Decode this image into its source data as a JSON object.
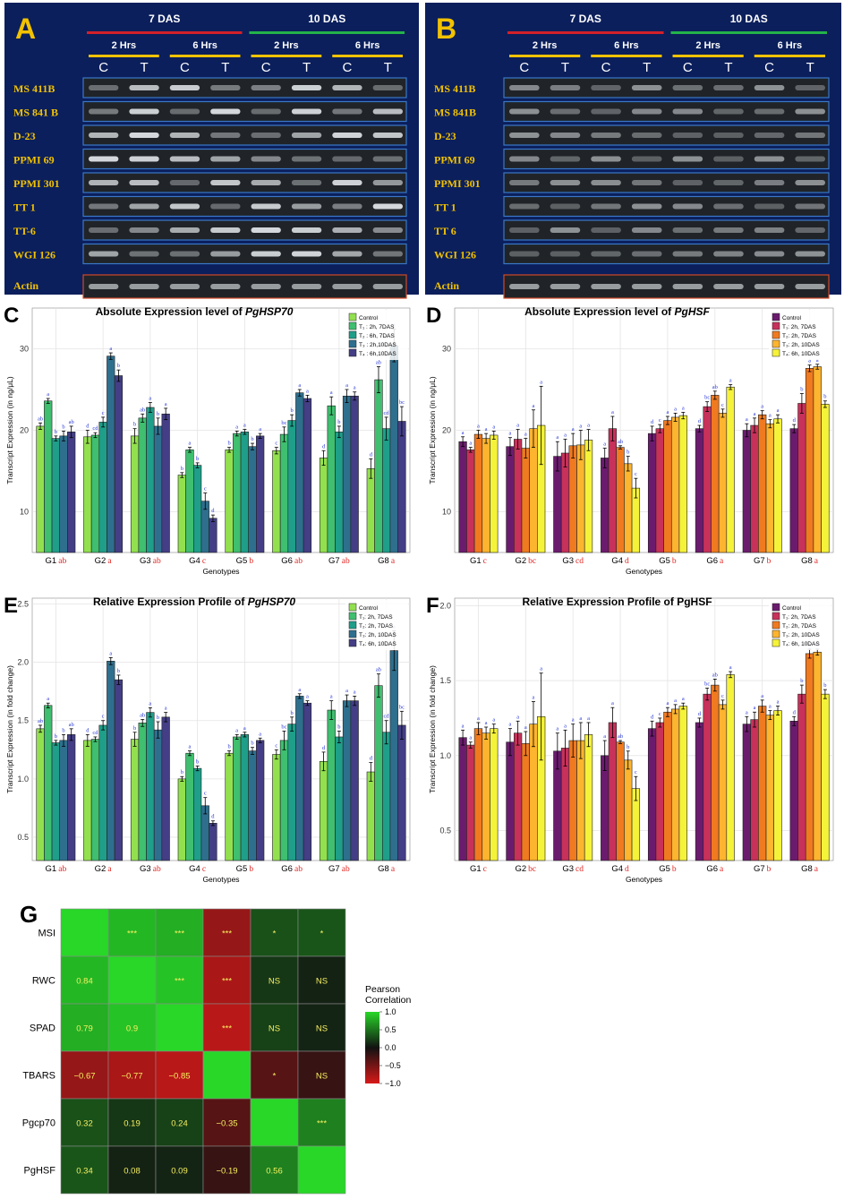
{
  "panels": {
    "A": {
      "letter": "A",
      "groups": [
        "7 DAS",
        "10 DAS"
      ],
      "subgroups": [
        "2 Hrs",
        "6 Hrs",
        "2 Hrs",
        "6 Hrs"
      ],
      "lanes": [
        "C",
        "T",
        "C",
        "T",
        "C",
        "T",
        "C",
        "T"
      ],
      "rows": [
        "MS 411B",
        "MS 841 B",
        "D-23",
        "PPMI 69",
        "PPMI 301",
        "TT 1",
        "TT-6",
        "WGI 126"
      ],
      "control": "Actin"
    },
    "B": {
      "letter": "B",
      "groups": [
        "7 DAS",
        "10 DAS"
      ],
      "subgroups": [
        "2 Hrs",
        "6 Hrs",
        "2 Hrs",
        "6 Hrs"
      ],
      "lanes": [
        "C",
        "T",
        "C",
        "T",
        "C",
        "T",
        "C",
        "T"
      ],
      "rows": [
        "MS 411B",
        "MS 841B",
        "D-23",
        "PPMI 69",
        "PPMI 301",
        "TT 1",
        "TT 6",
        "WGI 126"
      ],
      "control": "Actin"
    }
  },
  "colors": {
    "gel_bg": "#0b1f5c",
    "gel_label": "#f2c200",
    "red_bar": "#d3202a",
    "green_bar": "#23b34a",
    "yellow_bar": "#f2c200",
    "hsp_palette": [
      "#93e04f",
      "#3fbf6f",
      "#1f9e89",
      "#2e6f8e",
      "#433e85"
    ],
    "hsf_palette": [
      "#6b1b6e",
      "#c7315a",
      "#f07a20",
      "#fdb42f",
      "#f5f23a"
    ],
    "letter_blue": "#2b3bd6",
    "letter_red": "#e0231f"
  },
  "chart_data": [
    {
      "id": "C",
      "letter": "C",
      "type": "bar",
      "title_prefix": "Absolute Expression level of ",
      "title_gene": "PgHSP70",
      "xlabel": "Genotypes",
      "ylabel": "Transcript Expression (in ng/μL)",
      "ylim": [
        5,
        35
      ],
      "yticks": [
        10,
        20,
        30
      ],
      "categories": [
        "G1",
        "G2",
        "G3",
        "G4",
        "G5",
        "G6",
        "G7",
        "G8"
      ],
      "group_letters": [
        "ab",
        "a",
        "ab",
        "c",
        "b",
        "ab",
        "ab",
        "a"
      ],
      "legend": [
        "Control",
        "T₁ : 2h, 7DAS",
        "T₂ : 6h, 7DAS",
        "T₃ : 2h,10DAS",
        "T₄ : 6h,10DAS"
      ],
      "series": [
        {
          "name": "Control",
          "values": [
            20.5,
            19.2,
            19.3,
            14.5,
            17.6,
            17.5,
            16.6,
            15.3
          ],
          "errors": [
            0.4,
            0.8,
            0.9,
            0.3,
            0.3,
            0.4,
            0.9,
            1.2
          ],
          "letters": [
            "ab",
            "d",
            "b",
            "b",
            "b",
            "c",
            "d",
            "d"
          ]
        },
        {
          "name": "T1",
          "values": [
            23.6,
            19.4,
            21.5,
            17.6,
            19.6,
            19.5,
            23.0,
            26.2
          ],
          "errors": [
            0.3,
            0.3,
            0.5,
            0.3,
            0.3,
            0.9,
            1.1,
            1.6
          ],
          "letters": [
            "a",
            "cd",
            "ab",
            "a",
            "a",
            "bc",
            "a",
            "ab"
          ]
        },
        {
          "name": "T2",
          "values": [
            19.0,
            21.0,
            22.8,
            15.7,
            19.8,
            21.2,
            19.8,
            20.2
          ],
          "errors": [
            0.3,
            0.6,
            0.6,
            0.3,
            0.3,
            0.7,
            0.7,
            1.4
          ],
          "letters": [
            "b",
            "c",
            "a",
            "b",
            "a",
            "b",
            "b",
            "cd"
          ]
        },
        {
          "name": "T3",
          "values": [
            19.3,
            29.1,
            20.5,
            11.3,
            18.0,
            24.6,
            24.2,
            30.4
          ],
          "errors": [
            0.6,
            0.4,
            1.0,
            1.0,
            0.4,
            0.4,
            0.8,
            2.0
          ],
          "letters": [
            "b",
            "a",
            "b",
            "c",
            "b",
            "a",
            "a",
            "a"
          ]
        },
        {
          "name": "T4",
          "values": [
            19.8,
            26.7,
            22.0,
            9.2,
            19.3,
            23.9,
            24.2,
            21.1
          ],
          "errors": [
            0.7,
            0.7,
            0.7,
            0.4,
            0.3,
            0.4,
            0.5,
            1.8
          ],
          "letters": [
            "ab",
            "b",
            "a",
            "d",
            "a",
            "a",
            "a",
            "bc"
          ]
        }
      ]
    },
    {
      "id": "D",
      "letter": "D",
      "type": "bar",
      "title_prefix": "Absolute Expression level of ",
      "title_gene": "PgHSF",
      "xlabel": "Genotypes",
      "ylabel": "Transcript Expression (in ng/μL)",
      "ylim": [
        5,
        35
      ],
      "yticks": [
        10,
        20,
        30
      ],
      "categories": [
        "G1",
        "G2",
        "G3",
        "G4",
        "G5",
        "G6",
        "G7",
        "G8"
      ],
      "group_letters": [
        "c",
        "bc",
        "cd",
        "d",
        "b",
        "a",
        "b",
        "a"
      ],
      "legend": [
        "Control",
        "T₁: 2h, 7DAS",
        "T₂: 2h, 7DAS",
        "T₃: 2h, 10DAS",
        "T₄: 6h, 10DAS"
      ],
      "series": [
        {
          "name": "Control",
          "values": [
            18.6,
            18.0,
            16.8,
            16.6,
            19.6,
            20.2,
            20.0,
            20.2
          ],
          "errors": [
            0.6,
            1.1,
            1.8,
            1.2,
            0.9,
            0.4,
            0.8,
            0.5
          ],
          "letters": [
            "a",
            "a",
            "a",
            "a",
            "d",
            "d",
            "a",
            "d"
          ]
        },
        {
          "name": "T1",
          "values": [
            17.6,
            18.9,
            17.2,
            20.2,
            20.2,
            22.9,
            20.6,
            23.3
          ],
          "errors": [
            0.3,
            1.2,
            1.7,
            1.5,
            0.5,
            0.6,
            0.9,
            1.2
          ],
          "letters": [
            "a",
            "a",
            "a",
            "a",
            "c",
            "bc",
            "a",
            "b"
          ]
        },
        {
          "name": "T2",
          "values": [
            19.5,
            17.8,
            18.1,
            17.9,
            21.2,
            24.3,
            21.9,
            27.6
          ],
          "errors": [
            0.5,
            1.2,
            1.5,
            0.2,
            0.5,
            0.5,
            0.5,
            0.4
          ],
          "letters": [
            "a",
            "a",
            "a",
            "ab",
            "a",
            "ab",
            "a",
            "a"
          ]
        },
        {
          "name": "T3",
          "values": [
            19.0,
            20.2,
            18.2,
            15.9,
            21.6,
            22.1,
            20.8,
            27.8
          ],
          "errors": [
            0.6,
            2.3,
            1.8,
            0.9,
            0.5,
            0.5,
            0.5,
            0.3
          ],
          "letters": [
            "a",
            "a",
            "a",
            "b",
            "a",
            "c",
            "a",
            "a"
          ]
        },
        {
          "name": "T4",
          "values": [
            19.4,
            20.6,
            18.8,
            12.9,
            21.8,
            25.3,
            21.4,
            23.2
          ],
          "errors": [
            0.5,
            4.8,
            1.3,
            1.2,
            0.4,
            0.3,
            0.5,
            0.4
          ],
          "letters": [
            "a",
            "a",
            "a",
            "c",
            "a",
            "a",
            "a",
            "b"
          ]
        }
      ]
    },
    {
      "id": "E",
      "letter": "E",
      "type": "bar",
      "title_prefix": "Relative Expression Profile of ",
      "title_gene": "PgHSP70",
      "xlabel": "Genotypes",
      "ylabel": "Transcript Expression (in fold change)",
      "ylim": [
        0.3,
        2.55
      ],
      "yticks": [
        0.5,
        1.0,
        1.5,
        2.0,
        2.5
      ],
      "tick_labels": [
        "0.5",
        "1.0",
        "1.5",
        "2.0",
        "2.5"
      ],
      "categories": [
        "G1",
        "G2",
        "G3",
        "G4",
        "G5",
        "G6",
        "G7",
        "G8"
      ],
      "group_letters": [
        "ab",
        "a",
        "ab",
        "c",
        "b",
        "ab",
        "ab",
        "a"
      ],
      "legend": [
        "Control",
        "T₁: 2h, 7DAS",
        "T₂: 2h, 7DAS",
        "T₃: 2h, 10DAS",
        "T₄: 6h, 10DAS"
      ],
      "series": [
        {
          "name": "Control",
          "values": [
            1.43,
            1.33,
            1.34,
            1.0,
            1.22,
            1.21,
            1.15,
            1.06
          ],
          "errors": [
            0.03,
            0.05,
            0.06,
            0.02,
            0.02,
            0.04,
            0.08,
            0.08
          ],
          "letters": [
            "ab",
            "d",
            "b",
            "b",
            "b",
            "c",
            "d",
            "d"
          ]
        },
        {
          "name": "T1",
          "values": [
            1.63,
            1.34,
            1.48,
            1.22,
            1.36,
            1.33,
            1.59,
            1.8
          ],
          "errors": [
            0.02,
            0.02,
            0.03,
            0.02,
            0.02,
            0.08,
            0.08,
            0.1
          ],
          "letters": [
            "a",
            "cd",
            "ab",
            "a",
            "a",
            "bc",
            "a",
            "ab"
          ]
        },
        {
          "name": "T2",
          "values": [
            1.31,
            1.46,
            1.57,
            1.09,
            1.38,
            1.47,
            1.36,
            1.4
          ],
          "errors": [
            0.02,
            0.04,
            0.04,
            0.02,
            0.02,
            0.06,
            0.05,
            0.1
          ],
          "letters": [
            "b",
            "c",
            "a",
            "b",
            "a",
            "b",
            "b",
            "cd"
          ]
        },
        {
          "name": "T3",
          "values": [
            1.33,
            2.01,
            1.42,
            0.77,
            1.24,
            1.71,
            1.67,
            2.1
          ],
          "errors": [
            0.05,
            0.03,
            0.07,
            0.07,
            0.03,
            0.02,
            0.05,
            0.17
          ],
          "letters": [
            "b",
            "a",
            "b",
            "c",
            "b",
            "a",
            "a",
            "a"
          ]
        },
        {
          "name": "T4",
          "values": [
            1.38,
            1.85,
            1.53,
            0.62,
            1.33,
            1.65,
            1.67,
            1.46
          ],
          "errors": [
            0.05,
            0.04,
            0.04,
            0.02,
            0.02,
            0.02,
            0.04,
            0.12
          ],
          "letters": [
            "ab",
            "b",
            "a",
            "d",
            "a",
            "a",
            "a",
            "bc"
          ]
        }
      ]
    },
    {
      "id": "F",
      "letter": "F",
      "type": "bar",
      "title_prefix": "Relative Expression Profile of PgHSF",
      "title_gene": "",
      "xlabel": "Genotypes",
      "ylabel": "Transcript Expression (in fold change)",
      "ylim": [
        0.3,
        2.05
      ],
      "yticks": [
        0.5,
        1.0,
        1.5,
        2.0
      ],
      "tick_labels": [
        "0.5",
        "1.0",
        "1.5",
        "2.0"
      ],
      "categories": [
        "G1",
        "G2",
        "G3",
        "G4",
        "G5",
        "G6",
        "G7",
        "G8"
      ],
      "group_letters": [
        "c",
        "bc",
        "cd",
        "d",
        "b",
        "a",
        "b",
        "a"
      ],
      "legend": [
        "Control",
        "T₁: 2h, 7DAS",
        "T₂: 2h, 7DAS",
        "T₃: 2h, 10DAS",
        "T₄: 6h, 10DAS"
      ],
      "series": [
        {
          "name": "Control",
          "values": [
            1.12,
            1.09,
            1.03,
            1.0,
            1.18,
            1.22,
            1.21,
            1.23
          ],
          "errors": [
            0.05,
            0.09,
            0.12,
            0.1,
            0.05,
            0.03,
            0.05,
            0.03
          ],
          "letters": [
            "a",
            "a",
            "a",
            "a",
            "d",
            "d",
            "a",
            "d"
          ]
        },
        {
          "name": "T1",
          "values": [
            1.07,
            1.15,
            1.05,
            1.22,
            1.22,
            1.41,
            1.24,
            1.41
          ],
          "errors": [
            0.02,
            0.08,
            0.12,
            0.1,
            0.03,
            0.04,
            0.05,
            0.06
          ],
          "letters": [
            "a",
            "a",
            "a",
            "a",
            "c",
            "bc",
            "a",
            "b"
          ]
        },
        {
          "name": "T2",
          "values": [
            1.18,
            1.08,
            1.1,
            1.09,
            1.29,
            1.47,
            1.33,
            1.68
          ],
          "errors": [
            0.04,
            0.08,
            0.11,
            0.01,
            0.03,
            0.04,
            0.04,
            0.03
          ],
          "letters": [
            "a",
            "a",
            "a",
            "ab",
            "a",
            "ab",
            "a",
            "a"
          ]
        },
        {
          "name": "T3",
          "values": [
            1.15,
            1.21,
            1.1,
            0.97,
            1.31,
            1.34,
            1.27,
            1.69
          ],
          "errors": [
            0.04,
            0.15,
            0.12,
            0.06,
            0.03,
            0.03,
            0.03,
            0.02
          ],
          "letters": [
            "a",
            "a",
            "a",
            "b",
            "a",
            "c",
            "a",
            "a"
          ]
        },
        {
          "name": "T4",
          "values": [
            1.18,
            1.26,
            1.14,
            0.78,
            1.33,
            1.54,
            1.3,
            1.41
          ],
          "errors": [
            0.03,
            0.29,
            0.08,
            0.08,
            0.02,
            0.02,
            0.03,
            0.03
          ],
          "letters": [
            "a",
            "a",
            "a",
            "c",
            "a",
            "a",
            "a",
            "b"
          ]
        }
      ]
    },
    {
      "id": "G",
      "letter": "G",
      "type": "heatmap",
      "variables": [
        "MSI",
        "RWC",
        "SPAD",
        "TBARS",
        "Pgcp70",
        "PgHSF"
      ],
      "matrix": [
        [
          1.0,
          0.84,
          0.79,
          -0.67,
          0.32,
          0.34
        ],
        [
          0.84,
          1.0,
          0.9,
          -0.77,
          0.19,
          0.08
        ],
        [
          0.79,
          0.9,
          1.0,
          -0.85,
          0.24,
          0.09
        ],
        [
          -0.67,
          -0.77,
          -0.85,
          1.0,
          -0.35,
          -0.19
        ],
        [
          0.32,
          0.19,
          0.24,
          -0.35,
          1.0,
          0.56
        ],
        [
          0.34,
          0.08,
          0.09,
          -0.19,
          0.56,
          1.0
        ]
      ],
      "lower_labels": [
        [
          "",
          "",
          "",
          "",
          "",
          ""
        ],
        [
          "0.84",
          "",
          "",
          "",
          "",
          ""
        ],
        [
          "0.79",
          "0.9",
          "",
          "",
          "",
          ""
        ],
        [
          "−0.67",
          "−0.77",
          "−0.85",
          "",
          "",
          ""
        ],
        [
          "0.32",
          "0.19",
          "0.24",
          "−0.35",
          "",
          ""
        ],
        [
          "0.34",
          "0.08",
          "0.09",
          "−0.19",
          "0.56",
          ""
        ]
      ],
      "upper_labels": [
        [
          "",
          "***",
          "***",
          "***",
          "*",
          "*"
        ],
        [
          "",
          "",
          "***",
          "***",
          "NS",
          "NS"
        ],
        [
          "",
          "",
          "",
          "***",
          "NS",
          "NS"
        ],
        [
          "",
          "",
          "",
          "",
          "*",
          "NS"
        ],
        [
          "",
          "",
          "",
          "",
          "",
          "***"
        ],
        [
          "",
          "",
          "",
          "",
          "",
          ""
        ]
      ],
      "legend_title": "Pearson\nCorrelation",
      "legend_ticks": [
        1.0,
        0.5,
        0.0,
        -0.5,
        -1.0
      ],
      "legend_tick_labels": [
        "1.0",
        "0.5",
        "0.0",
        "−0.5",
        "−1.0"
      ]
    }
  ]
}
